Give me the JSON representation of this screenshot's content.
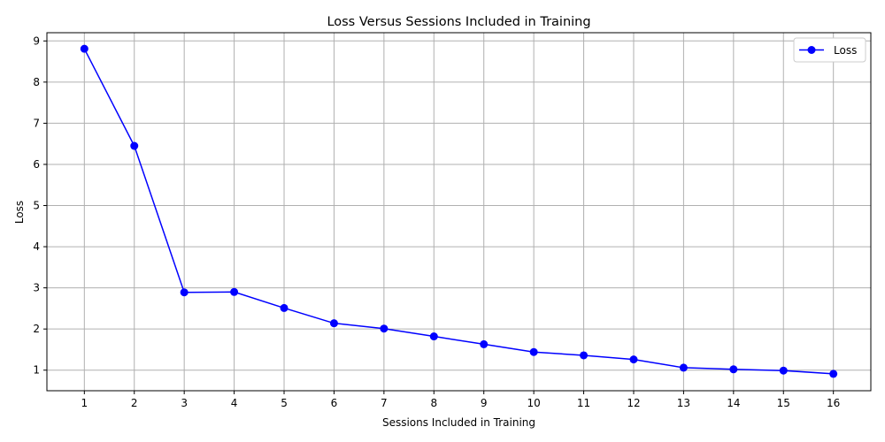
{
  "chart_data": {
    "type": "line",
    "title": "Loss Versus Sessions Included in Training",
    "xlabel": "Sessions Included in Training",
    "ylabel": "Loss",
    "x": [
      1,
      2,
      3,
      4,
      5,
      6,
      7,
      8,
      9,
      10,
      11,
      12,
      13,
      14,
      15,
      16
    ],
    "xticks": [
      "1",
      "2",
      "3",
      "4",
      "5",
      "6",
      "7",
      "8",
      "9",
      "10",
      "11",
      "12",
      "13",
      "14",
      "15",
      "16"
    ],
    "yticks": [
      1,
      2,
      3,
      4,
      5,
      6,
      7,
      8,
      9
    ],
    "xlim": [
      0.25,
      16.75
    ],
    "ylim": [
      0.5,
      9.2
    ],
    "grid": true,
    "legend_position": "top-right",
    "series": [
      {
        "name": "Loss",
        "color": "#0000ff",
        "marker": "circle",
        "values": [
          8.81,
          6.45,
          2.89,
          2.9,
          2.51,
          2.14,
          2.01,
          1.82,
          1.63,
          1.44,
          1.36,
          1.26,
          1.06,
          1.02,
          0.99,
          0.91
        ]
      }
    ]
  }
}
